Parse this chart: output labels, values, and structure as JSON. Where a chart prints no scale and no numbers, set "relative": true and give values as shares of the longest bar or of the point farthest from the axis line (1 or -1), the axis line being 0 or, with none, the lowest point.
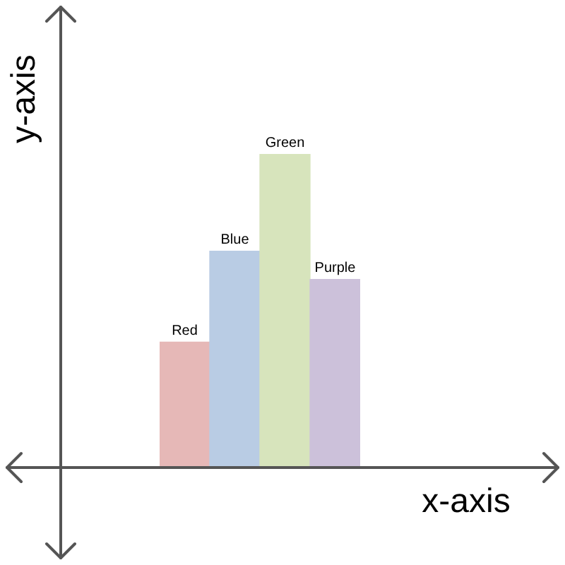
{
  "chart_data": {
    "type": "bar",
    "relative": true,
    "xlabel": "x-axis",
    "ylabel": "y-axis",
    "categories": [
      "Red",
      "Blue",
      "Green",
      "Purple"
    ],
    "values": [
      0.4,
      0.69,
      1,
      0.6
    ],
    "colors": [
      "#e6b8b7",
      "#b9cce4",
      "#d7e4bc",
      "#ccc1da"
    ]
  }
}
